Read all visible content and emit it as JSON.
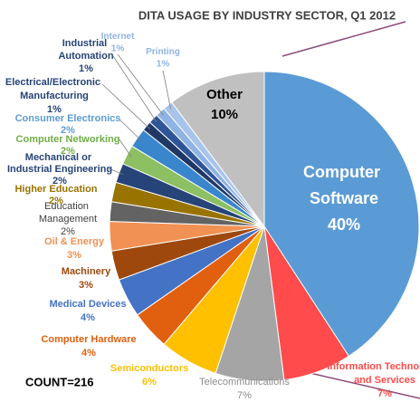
{
  "chart_data": {
    "type": "pie",
    "title": "DITA USAGE BY INDUSTRY SECTOR, Q1 2012",
    "annotation": "COUNT=216",
    "categories": [
      "Computer Software",
      "Information Technology and Services",
      "Telecommunications",
      "Semiconductors",
      "Computer Hardware",
      "Medical Devices",
      "Machinery",
      "Oil & Energy",
      "Education Management",
      "Higher Education",
      "Mechanical or Industrial Engineering",
      "Computer Networking",
      "Consumer Electronics",
      "Electrical/Electronic Manufacturing",
      "Industrial Automation",
      "Internet",
      "Printing",
      "Other"
    ],
    "values": [
      40,
      7,
      7,
      6,
      4,
      4,
      3,
      3,
      2,
      2,
      2,
      2,
      2,
      1,
      1,
      1,
      1,
      10
    ],
    "value_labels": [
      "40%",
      "7%",
      "7%",
      "6%",
      "4%",
      "4%",
      "3%",
      "3%",
      "2%",
      "2%",
      "2%",
      "2%",
      "2%",
      "1%",
      "1%",
      "1%",
      "1%",
      "10%"
    ],
    "colors": [
      "#5b9bd5",
      "#ff4b4b",
      "#a5a5a5",
      "#ffc000",
      "#e06010",
      "#4472c4",
      "#9e480e",
      "#f19153",
      "#636363",
      "#997300",
      "#264478",
      "#8cc063",
      "#3a86cc",
      "#203864",
      "#2f5597",
      "#8fb4e3",
      "#a9c4eb",
      "#c0c0c0"
    ]
  }
}
